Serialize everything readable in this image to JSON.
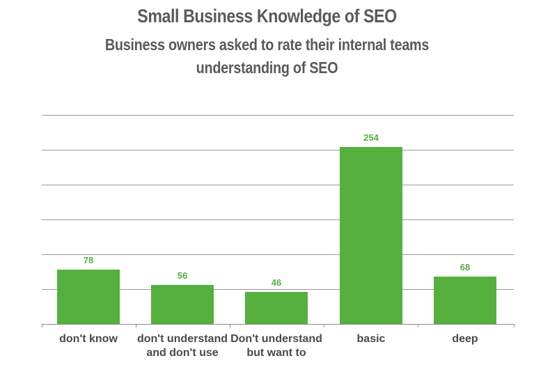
{
  "chart_data": {
    "type": "bar",
    "title": "Small Business Knowledge of SEO",
    "subtitle_lines": [
      "Business owners asked to rate their internal teams",
      "understanding of SEO"
    ],
    "categories": [
      [
        "don't know"
      ],
      [
        "don't understand",
        "and don't use"
      ],
      [
        "Don't understand",
        "but want to"
      ],
      [
        "basic"
      ],
      [
        "deep"
      ]
    ],
    "values": [
      78,
      56,
      46,
      254,
      68
    ],
    "data_labels": [
      "78",
      "56",
      "46",
      "254",
      "68"
    ],
    "xlabel": "",
    "ylabel": "",
    "ylim": [
      0,
      300
    ],
    "gridline_step": 50,
    "grid": true,
    "legend": "none",
    "colors": {
      "bar": "#55b03d",
      "value_label": "#55b03d",
      "text": "#5a5a5a",
      "grid": "#9a9a9a"
    }
  }
}
